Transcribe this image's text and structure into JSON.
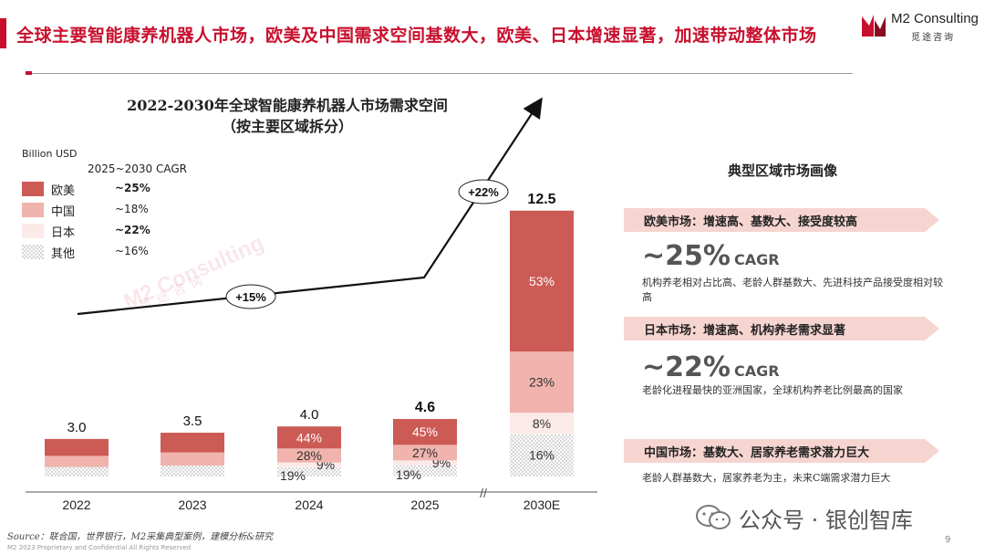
{
  "header": {
    "title": "全球主要智能康养机器人市场，欧美及中国需求空间基数大，欧美、日本增速显著，加速带动整体市场",
    "logo_text": "M2 Consulting",
    "logo_sub": "觅途咨询"
  },
  "colors": {
    "brand_red": "#c8102e",
    "na_eu": "#cc5a55",
    "china": "#f0b3ad",
    "japan": "#fbeae8",
    "banner": "#f6d5d1"
  },
  "chart_data": {
    "type": "bar",
    "stacked": true,
    "title_line1": "2022-2030年全球智能康养机器人市场需求空间",
    "title_line2": "（按主要区域拆分）",
    "unit": "Billion USD",
    "categories": [
      "2022",
      "2023",
      "2024",
      "2025",
      "2030E"
    ],
    "totals": [
      "3.0",
      "3.5",
      "4.0",
      "4.6",
      "12.5"
    ],
    "total_values": [
      3.0,
      3.5,
      4.0,
      4.6,
      12.5
    ],
    "bold_totals": [
      false,
      false,
      false,
      true,
      true
    ],
    "series": [
      {
        "name": "欧美",
        "cagr": "~25%",
        "share": [
          null,
          null,
          44,
          45,
          53
        ],
        "labels": [
          "",
          "",
          "44%",
          "45%",
          "53%"
        ]
      },
      {
        "name": "中国",
        "cagr": "~18%",
        "share": [
          null,
          null,
          28,
          27,
          23
        ],
        "labels": [
          "",
          "",
          "28%",
          "27%",
          "23%"
        ]
      },
      {
        "name": "日本",
        "cagr": "~22%",
        "share": [
          null,
          null,
          9,
          9,
          8
        ],
        "labels": [
          "",
          "",
          "9%",
          "9%",
          "8%"
        ]
      },
      {
        "name": "其他",
        "cagr": "~16%",
        "share": [
          null,
          null,
          19,
          19,
          16
        ],
        "labels": [
          "",
          "",
          "19%",
          "19%",
          "16%"
        ]
      }
    ],
    "legend_header": "2025~2030 CAGR",
    "growth_callouts": [
      "+15%",
      "+22%"
    ],
    "axis_break": "//"
  },
  "legend": {
    "unit": "Billion USD",
    "header": "2025~2030 CAGR"
  },
  "watermark": {
    "text": "M2 Consulting",
    "sub": "觅途咨询"
  },
  "right_panel": {
    "title": "典型区域市场画像",
    "regions": [
      {
        "banner": "欧美市场：增速高、基数大、接受度较高",
        "cagr_num": "~25%",
        "cagr_label": "CAGR",
        "desc": "机构养老相对占比高、老龄人群基数大、先进科技产品接受度相对较高"
      },
      {
        "banner": "日本市场：增速高、机构养老需求显著",
        "cagr_num": "~22%",
        "cagr_label": "CAGR",
        "desc": "老龄化进程最快的亚洲国家，全球机构养老比例最高的国家"
      },
      {
        "banner": "中国市场：基数大、居家养老需求潜力巨大",
        "cagr_num": "",
        "cagr_label": "",
        "desc": "老龄人群基数大，居家养老为主，未来C端需求潜力巨大"
      }
    ]
  },
  "footer": {
    "source": "Source：联合国，世界银行，M2采集典型案例，建模分析&研究",
    "copyright": "M2 2023 Proprietary and Confidential All Rights Reserved",
    "page_number": "9",
    "wechat": "公众号 · 银创智库"
  }
}
